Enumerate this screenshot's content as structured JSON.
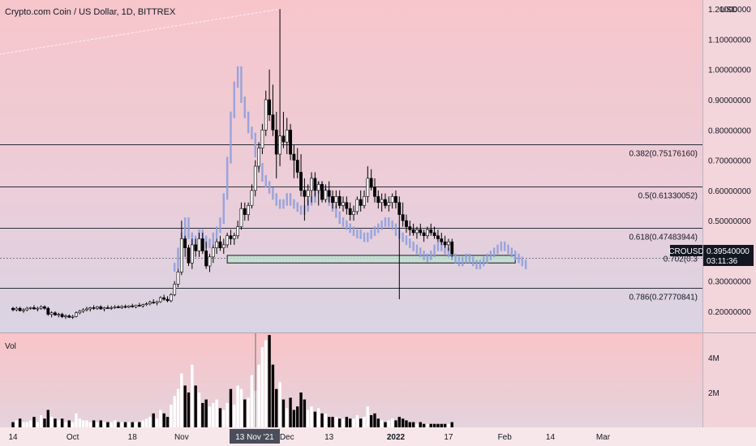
{
  "chart_data": {
    "type": "candlestick",
    "title": "Crypto.com Coin / US Dollar, 1D, BITTREX",
    "currency": "USD",
    "volume_label": "Vol",
    "symbol_tag": "CROUSD",
    "last_price": "0.39540000",
    "countdown": "03:11:36",
    "highlighted_date": "13 Nov '21",
    "y_ticks": [
      {
        "value": 1.2,
        "label": "1.20000000"
      },
      {
        "value": 1.1,
        "label": "1.10000000"
      },
      {
        "value": 1.0,
        "label": "1.00000000"
      },
      {
        "value": 0.9,
        "label": "0.90000000"
      },
      {
        "value": 0.8,
        "label": "0.80000000"
      },
      {
        "value": 0.7,
        "label": "0.70000000"
      },
      {
        "value": 0.6,
        "label": "0.60000000"
      },
      {
        "value": 0.5,
        "label": "0.50000000"
      },
      {
        "value": 0.3,
        "label": "0.30000000"
      },
      {
        "value": 0.2,
        "label": "0.20000000"
      }
    ],
    "ylim": [
      0.13,
      1.23
    ],
    "volume_ticks": [
      {
        "value": 4,
        "label": "4M"
      },
      {
        "value": 2,
        "label": "2M"
      }
    ],
    "volume_ylim": [
      0,
      5.4
    ],
    "x_ticks": [
      {
        "label": "14",
        "day": 0
      },
      {
        "label": "Oct",
        "day": 17
      },
      {
        "label": "18",
        "day": 34
      },
      {
        "label": "Nov",
        "day": 48
      },
      {
        "label": "Dec",
        "day": 78
      },
      {
        "label": "13",
        "day": 90
      },
      {
        "label": "2022",
        "day": 109
      },
      {
        "label": "17",
        "day": 124
      },
      {
        "label": "Feb",
        "day": 140
      },
      {
        "label": "14",
        "day": 153
      },
      {
        "label": "Mar",
        "day": 168
      }
    ],
    "fib_levels": [
      {
        "label": "0.382(0.75176160)",
        "value": 0.7517616
      },
      {
        "label": "0.5(0.61330052)",
        "value": 0.61330052
      },
      {
        "label": "0.618(0.47483944)",
        "value": 0.47483944
      },
      {
        "label": "0.702(0.3",
        "value": 0.3764
      },
      {
        "label": "0.786(0.27770841)",
        "value": 0.27770841
      }
    ],
    "zone": {
      "from_day": 61,
      "to_day": 143,
      "low": 0.36,
      "high": 0.385
    },
    "trend_line": {
      "from_day": -4,
      "from_value": 1.05,
      "to_day": 76,
      "to_value": 1.2
    },
    "candles": [
      [
        0.21,
        0.215,
        0.2,
        0.205,
        0.3
      ],
      [
        0.205,
        0.215,
        0.2,
        0.21,
        0.4
      ],
      [
        0.21,
        0.215,
        0.2,
        0.202,
        0.5
      ],
      [
        0.202,
        0.21,
        0.195,
        0.205,
        0.3
      ],
      [
        0.205,
        0.215,
        0.2,
        0.21,
        0.3
      ],
      [
        0.21,
        0.215,
        0.205,
        0.212,
        0.4
      ],
      [
        0.212,
        0.22,
        0.205,
        0.208,
        0.6
      ],
      [
        0.208,
        0.215,
        0.2,
        0.21,
        0.3
      ],
      [
        0.21,
        0.22,
        0.205,
        0.215,
        0.7
      ],
      [
        0.215,
        0.22,
        0.205,
        0.21,
        0.5
      ],
      [
        0.21,
        0.215,
        0.185,
        0.19,
        1.0
      ],
      [
        0.19,
        0.2,
        0.18,
        0.195,
        0.6
      ],
      [
        0.195,
        0.2,
        0.185,
        0.188,
        0.5
      ],
      [
        0.188,
        0.195,
        0.18,
        0.19,
        0.4
      ],
      [
        0.19,
        0.195,
        0.178,
        0.182,
        0.5
      ],
      [
        0.182,
        0.19,
        0.175,
        0.185,
        0.3
      ],
      [
        0.185,
        0.19,
        0.178,
        0.18,
        0.4
      ],
      [
        0.18,
        0.188,
        0.175,
        0.183,
        0.3
      ],
      [
        0.183,
        0.2,
        0.18,
        0.195,
        0.8
      ],
      [
        0.195,
        0.205,
        0.19,
        0.2,
        0.5
      ],
      [
        0.2,
        0.21,
        0.195,
        0.205,
        0.4
      ],
      [
        0.205,
        0.215,
        0.2,
        0.208,
        0.4
      ],
      [
        0.208,
        0.215,
        0.2,
        0.212,
        0.3
      ],
      [
        0.212,
        0.22,
        0.205,
        0.21,
        0.4
      ],
      [
        0.21,
        0.218,
        0.205,
        0.215,
        0.3
      ],
      [
        0.215,
        0.22,
        0.205,
        0.208,
        0.4
      ],
      [
        0.208,
        0.215,
        0.2,
        0.212,
        0.3
      ],
      [
        0.212,
        0.22,
        0.208,
        0.21,
        0.3
      ],
      [
        0.21,
        0.218,
        0.205,
        0.212,
        0.3
      ],
      [
        0.212,
        0.22,
        0.208,
        0.215,
        0.4
      ],
      [
        0.215,
        0.22,
        0.21,
        0.212,
        0.3
      ],
      [
        0.212,
        0.22,
        0.208,
        0.216,
        0.3
      ],
      [
        0.216,
        0.222,
        0.21,
        0.214,
        0.3
      ],
      [
        0.214,
        0.22,
        0.21,
        0.218,
        0.3
      ],
      [
        0.218,
        0.225,
        0.212,
        0.215,
        0.3
      ],
      [
        0.215,
        0.222,
        0.21,
        0.22,
        0.3
      ],
      [
        0.22,
        0.228,
        0.215,
        0.218,
        0.3
      ],
      [
        0.218,
        0.225,
        0.212,
        0.222,
        0.4
      ],
      [
        0.222,
        0.23,
        0.218,
        0.225,
        0.5
      ],
      [
        0.225,
        0.235,
        0.22,
        0.23,
        0.6
      ],
      [
        0.23,
        0.24,
        0.225,
        0.228,
        0.8
      ],
      [
        0.228,
        0.235,
        0.22,
        0.232,
        0.5
      ],
      [
        0.232,
        0.25,
        0.228,
        0.245,
        1.0
      ],
      [
        0.245,
        0.255,
        0.235,
        0.24,
        0.8
      ],
      [
        0.24,
        0.25,
        0.23,
        0.235,
        0.6
      ],
      [
        0.235,
        0.26,
        0.23,
        0.255,
        1.3
      ],
      [
        0.255,
        0.3,
        0.25,
        0.29,
        1.8
      ],
      [
        0.29,
        0.34,
        0.28,
        0.33,
        2.2
      ],
      [
        0.33,
        0.5,
        0.32,
        0.44,
        3.1
      ],
      [
        0.44,
        0.45,
        0.38,
        0.41,
        2.4
      ],
      [
        0.41,
        0.42,
        0.35,
        0.36,
        2.0
      ],
      [
        0.36,
        0.44,
        0.34,
        0.42,
        3.6
      ],
      [
        0.42,
        0.44,
        0.38,
        0.4,
        2.4
      ],
      [
        0.4,
        0.46,
        0.38,
        0.44,
        2.0
      ],
      [
        0.44,
        0.46,
        0.39,
        0.4,
        1.4
      ],
      [
        0.4,
        0.43,
        0.34,
        0.35,
        1.6
      ],
      [
        0.35,
        0.39,
        0.33,
        0.38,
        1.2
      ],
      [
        0.38,
        0.42,
        0.36,
        0.41,
        1.4
      ],
      [
        0.41,
        0.44,
        0.39,
        0.43,
        1.6
      ],
      [
        0.43,
        0.45,
        0.4,
        0.41,
        1.1
      ],
      [
        0.41,
        0.44,
        0.39,
        0.42,
        1.0
      ],
      [
        0.42,
        0.46,
        0.41,
        0.45,
        1.4
      ],
      [
        0.45,
        0.47,
        0.42,
        0.44,
        2.2
      ],
      [
        0.44,
        0.46,
        0.42,
        0.45,
        1.3
      ],
      [
        0.45,
        0.5,
        0.44,
        0.48,
        2.4
      ],
      [
        0.48,
        0.56,
        0.47,
        0.54,
        2.2
      ],
      [
        0.54,
        0.56,
        0.5,
        0.52,
        1.6
      ],
      [
        0.52,
        0.56,
        0.5,
        0.55,
        1.7
      ],
      [
        0.55,
        0.62,
        0.54,
        0.6,
        3.0
      ],
      [
        0.6,
        0.7,
        0.58,
        0.68,
        2.1
      ],
      [
        0.68,
        0.76,
        0.66,
        0.74,
        3.6
      ],
      [
        0.74,
        0.82,
        0.72,
        0.8,
        4.6
      ],
      [
        0.8,
        0.93,
        0.78,
        0.9,
        5.0
      ],
      [
        0.9,
        1.0,
        0.83,
        0.85,
        5.3
      ],
      [
        0.85,
        0.95,
        0.78,
        0.8,
        3.6
      ],
      [
        0.8,
        0.86,
        0.64,
        0.72,
        2.2
      ],
      [
        0.72,
        1.2,
        0.68,
        0.78,
        2.6
      ],
      [
        0.78,
        0.86,
        0.74,
        0.76,
        1.6
      ],
      [
        0.76,
        0.84,
        0.72,
        0.8,
        1.1
      ],
      [
        0.8,
        0.82,
        0.7,
        0.72,
        1.7
      ],
      [
        0.72,
        0.75,
        0.64,
        0.7,
        1.0
      ],
      [
        0.7,
        0.74,
        0.64,
        0.66,
        1.2
      ],
      [
        0.66,
        0.72,
        0.58,
        0.6,
        2.0
      ],
      [
        0.6,
        0.64,
        0.5,
        0.58,
        1.6
      ],
      [
        0.58,
        0.62,
        0.55,
        0.6,
        1.0
      ],
      [
        0.6,
        0.66,
        0.56,
        0.64,
        1.2
      ],
      [
        0.64,
        0.66,
        0.58,
        0.6,
        0.9
      ],
      [
        0.6,
        0.63,
        0.55,
        0.62,
        1.1
      ],
      [
        0.62,
        0.63,
        0.56,
        0.57,
        0.8
      ],
      [
        0.57,
        0.62,
        0.56,
        0.6,
        0.8
      ],
      [
        0.6,
        0.63,
        0.56,
        0.58,
        0.6
      ],
      [
        0.58,
        0.6,
        0.54,
        0.56,
        0.6
      ],
      [
        0.56,
        0.6,
        0.54,
        0.58,
        0.6
      ],
      [
        0.58,
        0.6,
        0.54,
        0.55,
        0.5
      ],
      [
        0.55,
        0.58,
        0.53,
        0.56,
        0.5
      ],
      [
        0.56,
        0.58,
        0.52,
        0.54,
        0.6
      ],
      [
        0.54,
        0.56,
        0.5,
        0.52,
        0.5
      ],
      [
        0.52,
        0.55,
        0.5,
        0.53,
        0.5
      ],
      [
        0.53,
        0.58,
        0.52,
        0.57,
        0.7
      ],
      [
        0.57,
        0.6,
        0.53,
        0.55,
        0.5
      ],
      [
        0.55,
        0.6,
        0.54,
        0.58,
        0.6
      ],
      [
        0.58,
        0.68,
        0.56,
        0.64,
        1.2
      ],
      [
        0.64,
        0.67,
        0.6,
        0.61,
        0.7
      ],
      [
        0.61,
        0.64,
        0.56,
        0.58,
        0.8
      ],
      [
        0.58,
        0.6,
        0.54,
        0.56,
        0.5
      ],
      [
        0.56,
        0.59,
        0.53,
        0.57,
        0.4
      ],
      [
        0.57,
        0.59,
        0.54,
        0.55,
        0.3
      ],
      [
        0.55,
        0.58,
        0.53,
        0.56,
        0.4
      ],
      [
        0.56,
        0.59,
        0.54,
        0.58,
        0.5
      ],
      [
        0.58,
        0.6,
        0.54,
        0.56,
        0.4
      ],
      [
        0.56,
        0.58,
        0.24,
        0.52,
        0.6
      ],
      [
        0.52,
        0.56,
        0.48,
        0.5,
        0.5
      ],
      [
        0.5,
        0.52,
        0.46,
        0.48,
        0.4
      ],
      [
        0.48,
        0.5,
        0.45,
        0.47,
        0.3
      ],
      [
        0.47,
        0.49,
        0.45,
        0.46,
        0.3
      ],
      [
        0.46,
        0.48,
        0.44,
        0.47,
        0.2
      ],
      [
        0.47,
        0.49,
        0.45,
        0.46,
        0.3
      ],
      [
        0.46,
        0.47,
        0.43,
        0.45,
        0.2
      ],
      [
        0.45,
        0.48,
        0.44,
        0.47,
        0.2
      ],
      [
        0.47,
        0.49,
        0.45,
        0.46,
        0.2
      ],
      [
        0.46,
        0.48,
        0.44,
        0.45,
        0.2
      ],
      [
        0.45,
        0.47,
        0.43,
        0.44,
        0.2
      ],
      [
        0.44,
        0.46,
        0.42,
        0.43,
        0.2
      ],
      [
        0.43,
        0.45,
        0.41,
        0.42,
        0.2
      ],
      [
        0.42,
        0.44,
        0.4,
        0.43,
        0.2
      ],
      [
        0.43,
        0.44,
        0.38,
        0.39,
        0.3
      ]
    ],
    "ghost_day_offset": 4,
    "ghost_start_day": 42,
    "ghost_closes": [
      0.35,
      0.4,
      0.45,
      0.5,
      0.45,
      0.42,
      0.44,
      0.46,
      0.44,
      0.42,
      0.43,
      0.45,
      0.47,
      0.5,
      0.58,
      0.7,
      0.85,
      0.95,
      1.0,
      0.9,
      0.85,
      0.8,
      0.78,
      0.72,
      0.68,
      0.64,
      0.62,
      0.6,
      0.58,
      0.56,
      0.55,
      0.56,
      0.58,
      0.56,
      0.55,
      0.54,
      0.53,
      0.54,
      0.56,
      0.57,
      0.6,
      0.62,
      0.6,
      0.58,
      0.56,
      0.54,
      0.52,
      0.5,
      0.49,
      0.48,
      0.47,
      0.46,
      0.46,
      0.45,
      0.44,
      0.45,
      0.46,
      0.47,
      0.48,
      0.49,
      0.5,
      0.49,
      0.48,
      0.46,
      0.45,
      0.44,
      0.43,
      0.42,
      0.41,
      0.4,
      0.39,
      0.38,
      0.38,
      0.39,
      0.41,
      0.42,
      0.41,
      0.4,
      0.39,
      0.38,
      0.37,
      0.36,
      0.37,
      0.38,
      0.37,
      0.36,
      0.35,
      0.36,
      0.37,
      0.38,
      0.39,
      0.4,
      0.41,
      0.42,
      0.41,
      0.4,
      0.39,
      0.38,
      0.37,
      0.36,
      0.35
    ]
  }
}
